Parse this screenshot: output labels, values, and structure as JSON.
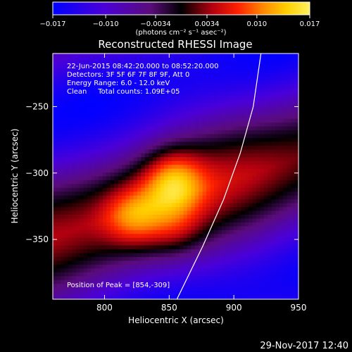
{
  "chart_data": {
    "type": "heatmap",
    "title": "Reconstructed RHESSI Image",
    "xlabel": "Heliocentric X (arcsec)",
    "ylabel": "Heliocentric Y (arcsec)",
    "xlim": [
      760,
      950
    ],
    "ylim": [
      -395,
      -210
    ],
    "xticks": [
      800,
      850,
      900,
      950
    ],
    "xtick_labels": [
      "800",
      "850",
      "900",
      "950"
    ],
    "yticks": [
      -250,
      -300,
      -350
    ],
    "ytick_labels": [
      "−250",
      "−300",
      "−350"
    ],
    "colorbar": {
      "range": [
        -0.017,
        0.017
      ],
      "ticks": [
        -0.017,
        -0.01,
        -0.0034,
        0.0034,
        0.01,
        0.017
      ],
      "tick_labels": [
        "−0.017",
        "−0.010",
        "−0.0034",
        "0.0034",
        "0.010",
        "0.017"
      ],
      "unit_label": "(photons cm⁻² s⁻¹ asec⁻²)"
    },
    "info_lines": [
      "22-Jun-2015 08:42:20.000 to 08:52:20.000",
      "Detectors: 3F 5F 6F 7F 8F 9F, Att 0",
      "Energy Range: 6.0 - 12.0 keV",
      "Clean     Total counts: 1.09E+05"
    ],
    "peak_label": "Position of Peak = [854,-309]",
    "peak": {
      "x": 854,
      "y": -309
    },
    "sources": [
      {
        "x": 853,
        "y": -306,
        "amplitude": 0.017
      },
      {
        "x": 823,
        "y": -333,
        "amplitude": 0.0145
      },
      {
        "x": 855,
        "y": -342,
        "amplitude": 0.011
      }
    ],
    "limb_curve": [
      {
        "x": 921,
        "y": -210
      },
      {
        "x": 915,
        "y": -250
      },
      {
        "x": 905,
        "y": -285
      },
      {
        "x": 892,
        "y": -320
      },
      {
        "x": 876,
        "y": -355
      },
      {
        "x": 856,
        "y": -395
      }
    ],
    "timestamp": "29-Nov-2017 12:40"
  }
}
